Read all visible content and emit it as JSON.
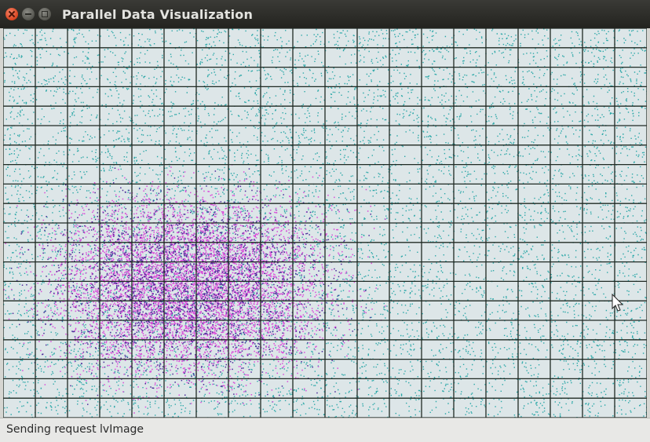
{
  "window": {
    "title": "Parallel Data Visualization",
    "controls": {
      "close_icon": "close-icon",
      "minimize_icon": "minimize-icon",
      "maximize_icon": "maximize-icon"
    }
  },
  "visualization": {
    "grid_columns": 20,
    "grid_rows": 20,
    "colors": {
      "background": "#dde6e8",
      "grid_line": "#1f2a24",
      "cyan_points": "#2aa7a7",
      "magenta_points": "#d94ad9",
      "purple_points": "#4b2a9a"
    }
  },
  "status": {
    "text": "Sending request lvImage"
  },
  "cursor": {
    "icon": "arrow-cursor-icon"
  }
}
